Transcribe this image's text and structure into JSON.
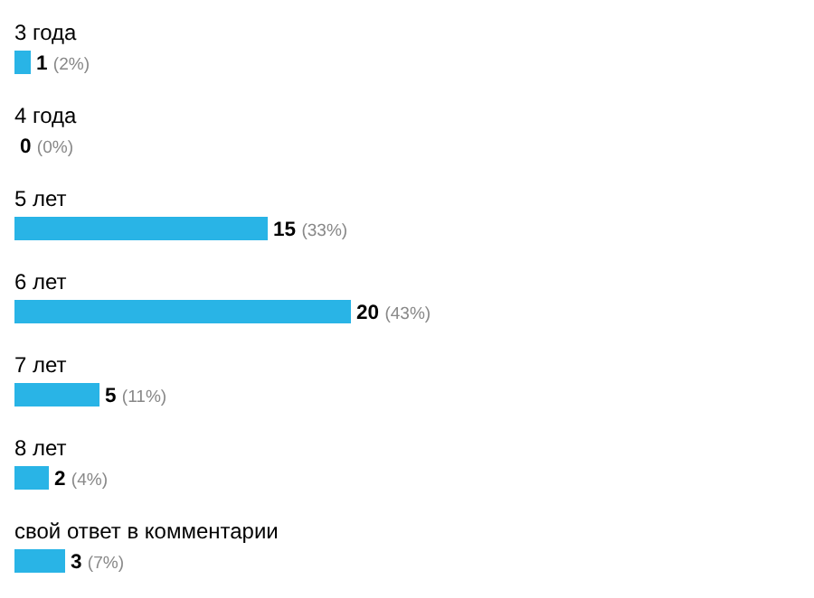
{
  "chart_data": {
    "type": "bar",
    "orientation": "horizontal",
    "categories": [
      "3 года",
      "4 года",
      "5 лет",
      "6 лет",
      "7 лет",
      "8 лет",
      "свой ответ в комментарии"
    ],
    "values": [
      1,
      0,
      15,
      20,
      5,
      2,
      3
    ],
    "color": "#29b4e6",
    "value_labels": [
      "1 (2%)",
      "0 (0%)",
      "15 (33%)",
      "20 (43%)",
      "5 (11%)",
      "2 (4%)",
      "3 (7%)"
    ]
  }
}
